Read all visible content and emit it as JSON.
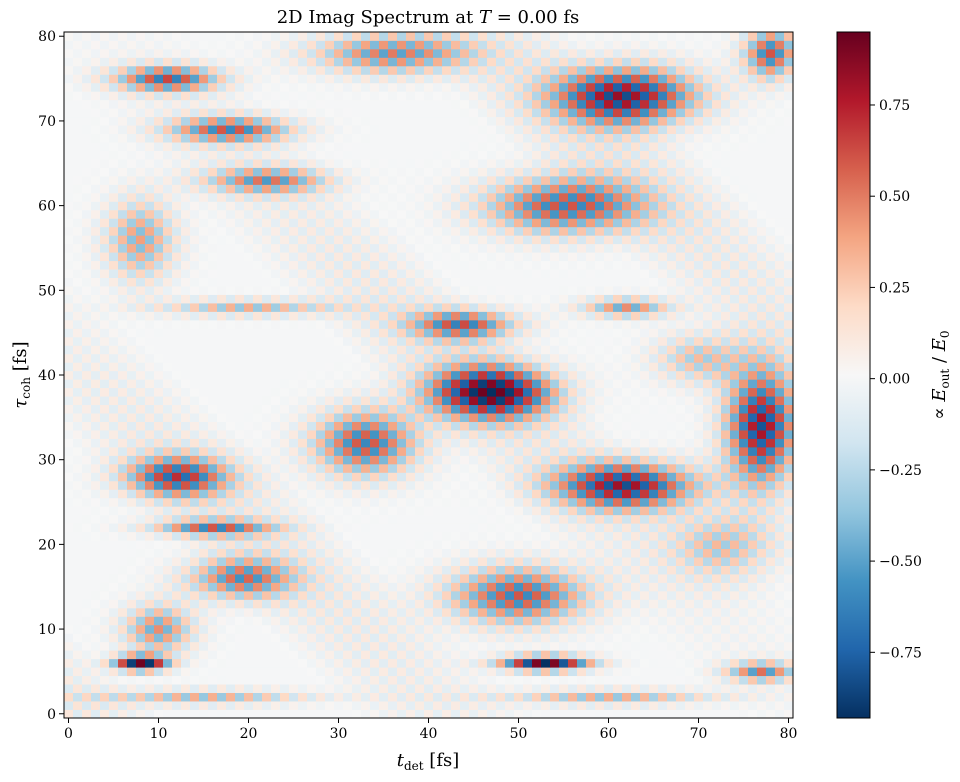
{
  "chart_data": {
    "type": "heatmap",
    "title": {
      "prefix": "2D Imag Spectrum at ",
      "var": "T",
      "suffix": " = 0.00 fs"
    },
    "xlabel": {
      "var": "t",
      "sub": "det",
      "unit": " [fs]"
    },
    "ylabel": {
      "var": "τ",
      "sub": "coh",
      "unit": " [fs]"
    },
    "colorbar_label": "∝ E_out / E_0",
    "colorbar_label_parts": {
      "prefix": "∝ ",
      "num_var": "E",
      "num_sub": "out",
      "sep": " / ",
      "den_var": "E",
      "den_sub": "0"
    },
    "colormap": "RdBu_r",
    "x_range": [
      -0.5,
      80.5
    ],
    "y_range": [
      -0.5,
      80.5
    ],
    "x_ticks": [
      "0",
      "10",
      "20",
      "30",
      "40",
      "50",
      "60",
      "70",
      "80"
    ],
    "y_ticks": [
      "0",
      "10",
      "20",
      "30",
      "40",
      "50",
      "60",
      "70",
      "80"
    ],
    "x_tick_values": [
      0,
      10,
      20,
      30,
      40,
      50,
      60,
      70,
      80
    ],
    "y_tick_values": [
      0,
      10,
      20,
      30,
      40,
      50,
      60,
      70,
      80
    ],
    "color_range": [
      -0.93,
      0.95
    ],
    "colorbar_ticks": [
      "−0.75",
      "−0.50",
      "−0.25",
      "0.00",
      "0.25",
      "0.50",
      "0.75"
    ],
    "colorbar_tick_values": [
      -0.75,
      -0.5,
      -0.25,
      0.0,
      0.25,
      0.5,
      0.75
    ],
    "grid": false,
    "grid_size": 81,
    "blobs": [
      {
        "x": 8,
        "y": 6,
        "amp": 0.93,
        "sx": 3,
        "sy": 0.9
      },
      {
        "x": 53,
        "y": 6,
        "amp": 0.93,
        "sx": 5,
        "sy": 0.9
      },
      {
        "x": 11,
        "y": 75,
        "amp": 0.6,
        "sx": 6,
        "sy": 1.6
      },
      {
        "x": 18,
        "y": 69,
        "amp": 0.55,
        "sx": 7,
        "sy": 1.6
      },
      {
        "x": 22,
        "y": 63,
        "amp": 0.45,
        "sx": 7,
        "sy": 1.6
      },
      {
        "x": 62,
        "y": 73,
        "amp": 0.8,
        "sx": 8,
        "sy": 3.5
      },
      {
        "x": 36,
        "y": 78,
        "amp": 0.5,
        "sx": 9,
        "sy": 2.5
      },
      {
        "x": 55,
        "y": 60,
        "amp": 0.6,
        "sx": 9,
        "sy": 3.5
      },
      {
        "x": 8,
        "y": 56,
        "amp": 0.4,
        "sx": 4,
        "sy": 5
      },
      {
        "x": 20,
        "y": 48,
        "amp": 0.35,
        "sx": 10,
        "sy": 1
      },
      {
        "x": 44,
        "y": 46,
        "amp": 0.55,
        "sx": 6,
        "sy": 1.8
      },
      {
        "x": 62,
        "y": 48,
        "amp": 0.45,
        "sx": 5,
        "sy": 1.2
      },
      {
        "x": 47,
        "y": 38,
        "amp": 0.85,
        "sx": 7,
        "sy": 3.2
      },
      {
        "x": 77,
        "y": 34,
        "amp": 0.8,
        "sx": 4,
        "sy": 7
      },
      {
        "x": 33,
        "y": 32,
        "amp": 0.6,
        "sx": 6,
        "sy": 4
      },
      {
        "x": 62,
        "y": 27,
        "amp": 0.75,
        "sx": 8,
        "sy": 2.8
      },
      {
        "x": 12,
        "y": 28,
        "amp": 0.6,
        "sx": 6,
        "sy": 2.5
      },
      {
        "x": 16,
        "y": 22,
        "amp": 0.5,
        "sx": 7,
        "sy": 1
      },
      {
        "x": 19,
        "y": 16,
        "amp": 0.5,
        "sx": 6,
        "sy": 2.5
      },
      {
        "x": 50,
        "y": 14,
        "amp": 0.6,
        "sx": 8,
        "sy": 3.5
      },
      {
        "x": 10,
        "y": 10,
        "amp": 0.45,
        "sx": 4,
        "sy": 3
      },
      {
        "x": 15,
        "y": 2,
        "amp": 0.35,
        "sx": 12,
        "sy": 0.9
      },
      {
        "x": 60,
        "y": 2,
        "amp": 0.35,
        "sx": 12,
        "sy": 0.9
      },
      {
        "x": 78,
        "y": 78,
        "amp": 0.6,
        "sx": 3,
        "sy": 3
      },
      {
        "x": 77,
        "y": 5,
        "amp": 0.5,
        "sx": 4,
        "sy": 1.2
      },
      {
        "x": 73,
        "y": 20,
        "amp": 0.3,
        "sx": 6,
        "sy": 4
      },
      {
        "x": 70,
        "y": 42,
        "amp": 0.3,
        "sx": 5,
        "sy": 3
      }
    ]
  }
}
